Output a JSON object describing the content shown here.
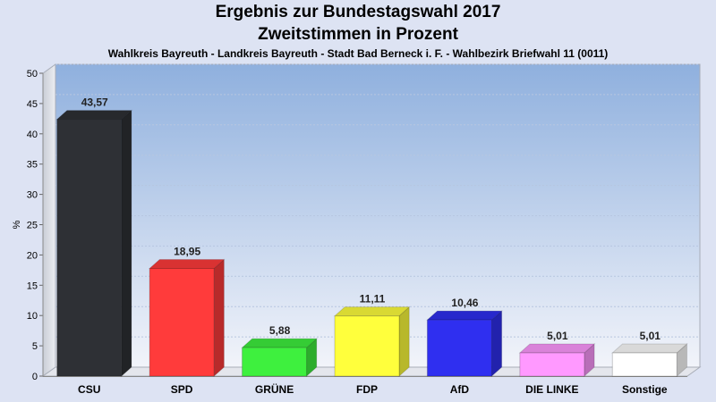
{
  "chart_data": {
    "type": "bar",
    "title": "Ergebnis zur Bundestagswahl 2017",
    "subtitle": "Zweitstimmen in Prozent",
    "subtitle2": "Wahlkreis Bayreuth - Landkreis Bayreuth - Stadt Bad Berneck i. F. - Wahlbezirk Briefwahl 11 (0011)",
    "ylabel": "%",
    "ylim": [
      0,
      50
    ],
    "yticks": [
      0,
      5,
      10,
      15,
      20,
      25,
      30,
      35,
      40,
      45,
      50
    ],
    "categories": [
      "CSU",
      "SPD",
      "GRÜNE",
      "FDP",
      "AfD",
      "DIE LINKE",
      "Sonstige"
    ],
    "values": [
      43.57,
      18.95,
      5.88,
      11.11,
      10.46,
      5.01,
      5.01
    ],
    "value_labels": [
      "43,57",
      "18,95",
      "5,88",
      "11,11",
      "10,46",
      "5,01",
      "5,01"
    ],
    "colors": [
      "#2e3035",
      "#ff3b3b",
      "#3ef03e",
      "#ffff3c",
      "#2f2ff0",
      "#ff99ff",
      "#ffffff"
    ],
    "grid": true
  }
}
